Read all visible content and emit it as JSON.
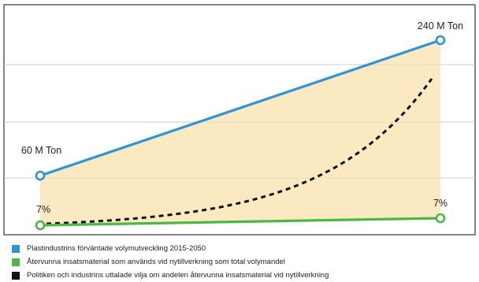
{
  "colors": {
    "plastic_line": "#2f93d6",
    "recycled_line": "#4cb648",
    "ambition_line": "#111111",
    "fill": "#fbe8be",
    "grid": "#cccccc",
    "frame": "#333333"
  },
  "chart_data": {
    "type": "line",
    "x": [
      2015,
      2050
    ],
    "xlim": [
      2015,
      2050
    ],
    "title": "",
    "xlabel": "",
    "ylabel": "",
    "grid": true,
    "legend_position": "bottom",
    "series": [
      {
        "name": "Plastindustrins förväntade volymutveckling 2015-2050",
        "color": "#2f93d6",
        "style": "solid",
        "values": [
          60,
          240
        ],
        "start_label": "60 M Ton",
        "end_label": "240 M Ton"
      },
      {
        "name": "Återvunna insatsmaterial som används vid nytillverkning som total volymandel",
        "color": "#4cb648",
        "style": "solid",
        "values": [
          7,
          7
        ],
        "start_label": "7%",
        "end_label": "7%"
      },
      {
        "name": "Politiken och industrins uttalade vilja om andelen återvunna insatsmaterial vid nytillverkning",
        "color": "#111111",
        "style": "dashed",
        "curve": "exponential"
      }
    ]
  }
}
